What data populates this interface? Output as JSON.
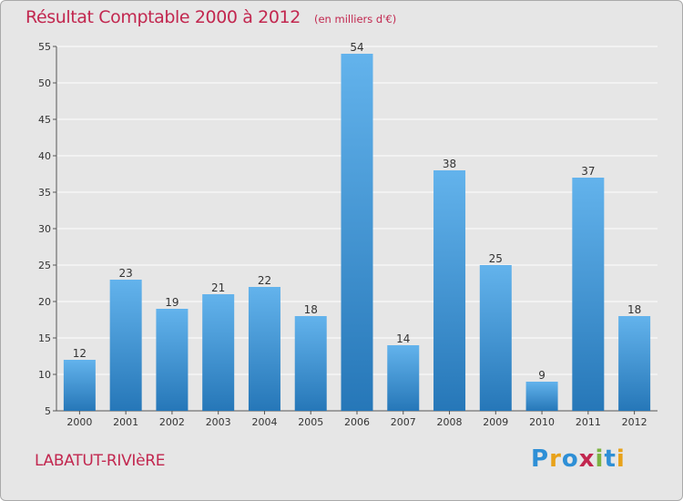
{
  "title": "Résultat Comptable 2000 à 2012",
  "subtitle": "(en milliers d'€)",
  "place": "LABATUT-RIVIèRE",
  "logo": {
    "letters": [
      "P",
      "r",
      "o",
      "x",
      "i",
      "t",
      "i"
    ],
    "colors": [
      "#2e8fd6",
      "#e8a21a",
      "#2e8fd6",
      "#c2274f",
      "#7cb342",
      "#2e8fd6",
      "#e8a21a"
    ]
  },
  "colors": {
    "bar_light": "#63b3ec",
    "bar_dark": "#2677b8",
    "title": "#c2274f",
    "background": "#e6e6e6"
  },
  "chart_data": {
    "type": "bar",
    "categories": [
      "2000",
      "2001",
      "2002",
      "2003",
      "2004",
      "2005",
      "2006",
      "2007",
      "2008",
      "2009",
      "2010",
      "2011",
      "2012"
    ],
    "values": [
      12,
      23,
      19,
      21,
      22,
      18,
      54,
      14,
      38,
      25,
      9,
      37,
      18
    ],
    "ylim": [
      5,
      55
    ],
    "yticks": [
      5,
      10,
      15,
      20,
      25,
      30,
      35,
      40,
      45,
      50,
      55
    ],
    "grid": true
  }
}
